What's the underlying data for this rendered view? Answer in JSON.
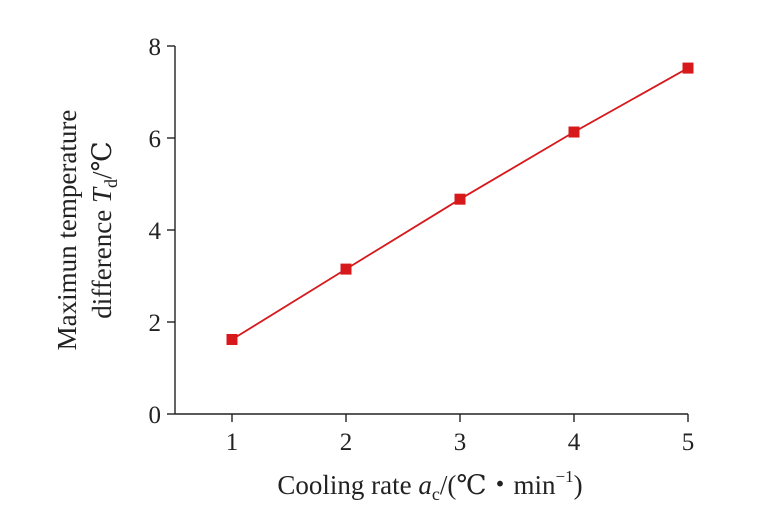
{
  "chart_data": {
    "type": "line",
    "title": "",
    "xlabel": {
      "prefix": "Cooling rate ",
      "var": "a",
      "sub": "c",
      "units": "/(℃・min",
      "sup": "−1",
      "close": ")"
    },
    "ylabel": {
      "line1": "Maximun temperature",
      "line2_prefix": "difference ",
      "var": "T",
      "sub": "d",
      "units": "/℃"
    },
    "xlim": [
      0.5,
      5
    ],
    "ylim": [
      0,
      8
    ],
    "x_ticks": [
      "1",
      "2",
      "3",
      "4",
      "5"
    ],
    "y_ticks": [
      "0",
      "2",
      "4",
      "6",
      "8"
    ],
    "grid": false,
    "legend": "none",
    "series": [
      {
        "x": [
          1,
          2,
          3,
          4,
          5
        ],
        "values": [
          1.62,
          3.15,
          4.67,
          6.13,
          7.52
        ],
        "color": "#d7191c",
        "marker": "square"
      }
    ]
  }
}
